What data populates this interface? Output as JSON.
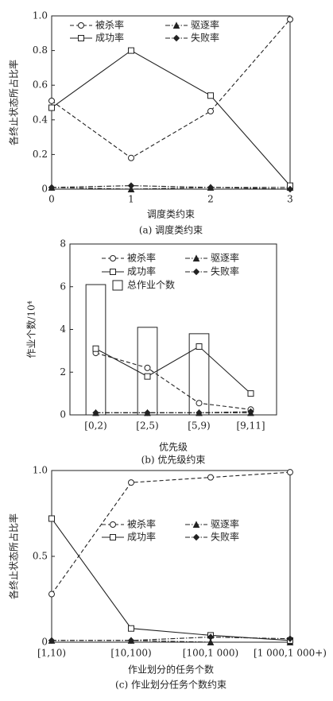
{
  "chart_data": [
    {
      "type": "line",
      "caption": "(a) 调度类约束",
      "xlabel": "调度类约束",
      "ylabel": "各终止状态所占比率",
      "x": [
        0,
        1,
        2,
        3
      ],
      "xlim": [
        0,
        3
      ],
      "xticks": [
        0,
        1,
        2,
        3
      ],
      "ylim": [
        0,
        1
      ],
      "yticks": [
        0,
        0.2,
        0.4,
        0.6,
        0.8,
        {
          "value": 1,
          "label": "1.0"
        }
      ],
      "series": [
        {
          "name": "被杀率",
          "color": "#222222",
          "marker": "circle",
          "linestyle": "dashed",
          "values": [
            0.51,
            0.18,
            0.45,
            0.98
          ]
        },
        {
          "name": "驱逐率",
          "color": "#222222",
          "marker": "triangle",
          "linestyle": "dashdot",
          "values": [
            0.01,
            0.0,
            0.01,
            0.01
          ]
        },
        {
          "name": "成功率",
          "color": "#222222",
          "marker": "square",
          "linestyle": "solid",
          "values": [
            0.47,
            0.8,
            0.54,
            0.02
          ]
        },
        {
          "name": "失败率",
          "color": "#222222",
          "marker": "diamond",
          "linestyle": "dashdot",
          "values": [
            0.01,
            0.02,
            0.01,
            0.0
          ]
        }
      ]
    },
    {
      "type": "bar_line",
      "caption": "(b) 优先级约束",
      "xlabel": "优先级",
      "ylabel": "作业个数/10⁴",
      "categories": [
        "[0,2)",
        "[2,5)",
        "[5,9)",
        "[9,11]"
      ],
      "ylim": [
        0,
        8
      ],
      "yticks": [
        0,
        2,
        4,
        6,
        8
      ],
      "series": [
        {
          "name": "被杀率",
          "color": "#222222",
          "marker": "circle",
          "linestyle": "dashed",
          "values": [
            2.9,
            2.2,
            0.55,
            0.25
          ]
        },
        {
          "name": "驱逐率",
          "color": "#222222",
          "marker": "triangle",
          "linestyle": "dashdot",
          "values": [
            0.1,
            0.1,
            0.1,
            0.1
          ]
        },
        {
          "name": "成功率",
          "color": "#222222",
          "marker": "square",
          "linestyle": "solid",
          "values": [
            3.1,
            1.8,
            3.2,
            1.0
          ]
        },
        {
          "name": "失败率",
          "color": "#222222",
          "marker": "diamond",
          "linestyle": "dashdot",
          "values": [
            0.1,
            0.1,
            0.1,
            0.15
          ]
        },
        {
          "name": "总作业个数",
          "color": "#222222",
          "type": "bar",
          "values": [
            6.1,
            4.1,
            3.8,
            null
          ]
        }
      ]
    },
    {
      "type": "line",
      "caption": "(c) 作业划分任务个数约束",
      "xlabel": "作业划分的任务个数",
      "ylabel": "各终止状态所占比率",
      "categories": [
        "[1,10)",
        "[10,100)",
        "[100,1 000)",
        "[1 000,1 000+)"
      ],
      "ylim": [
        0,
        1
      ],
      "yticks": [
        0,
        0.5,
        {
          "value": 1,
          "label": "1.0"
        }
      ],
      "series": [
        {
          "name": "被杀率",
          "color": "#222222",
          "marker": "circle",
          "linestyle": "dashed",
          "values": [
            0.28,
            0.93,
            0.96,
            0.99
          ]
        },
        {
          "name": "驱逐率",
          "color": "#222222",
          "marker": "triangle",
          "linestyle": "dashdot",
          "values": [
            0.01,
            0.01,
            0.0,
            0.0
          ]
        },
        {
          "name": "成功率",
          "color": "#222222",
          "marker": "square",
          "linestyle": "solid",
          "values": [
            0.72,
            0.08,
            0.04,
            0.01
          ]
        },
        {
          "name": "失败率",
          "color": "#222222",
          "marker": "diamond",
          "linestyle": "dashdot",
          "values": [
            0.01,
            0.01,
            0.03,
            0.02
          ]
        }
      ]
    }
  ]
}
